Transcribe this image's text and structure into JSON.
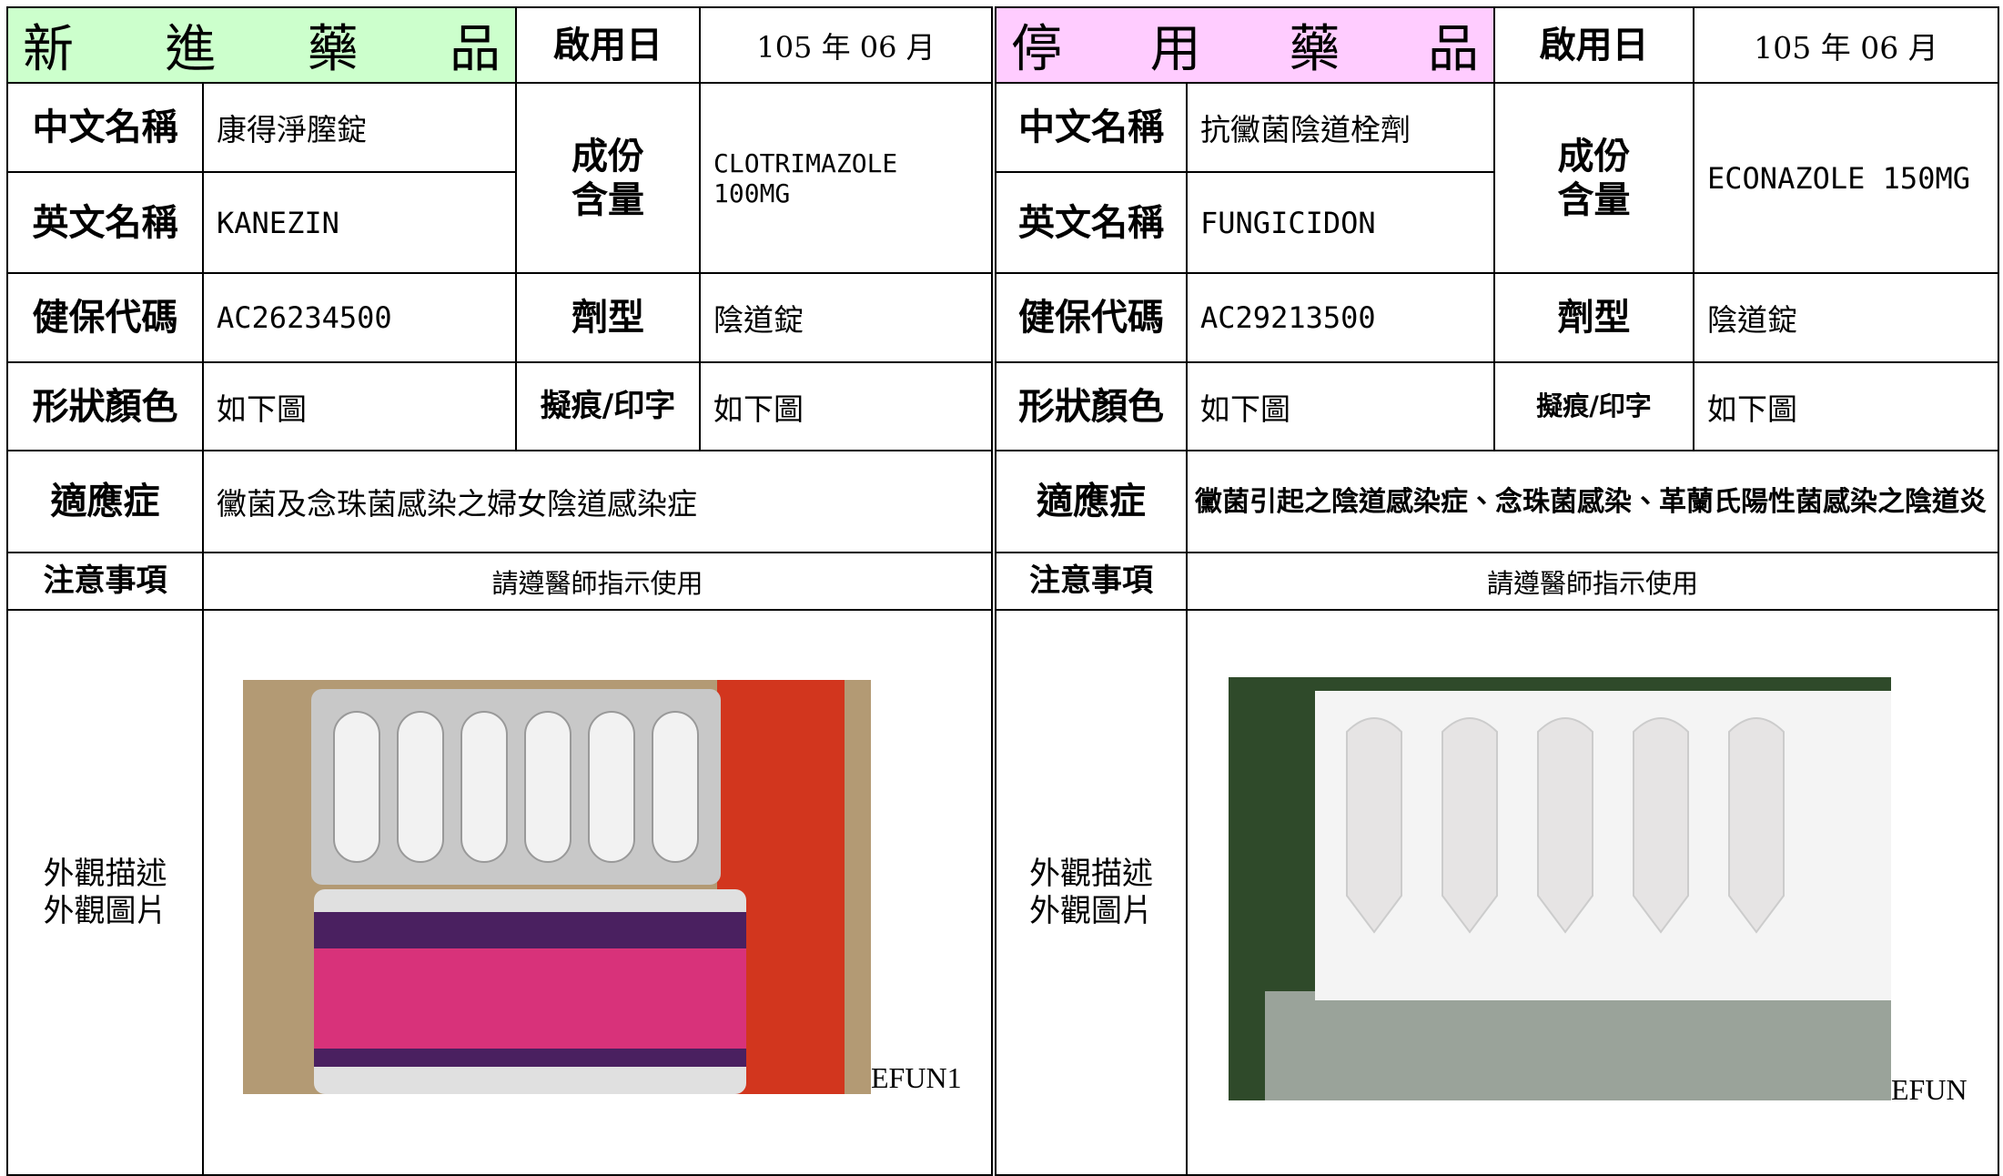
{
  "panels": [
    {
      "title": "新 進 藥 品",
      "start_label": "啟用日",
      "start_date": "105 年 06 月",
      "chinese_name_label": "中文名稱",
      "chinese_name": "康得淨膣錠",
      "english_name_label": "英文名稱",
      "english_name": "KANEZIN",
      "ingredient_label": "成份\n含量",
      "ingredient": "CLOTRIMAZOLE 100MG",
      "nhi_code_label": "健保代碼",
      "nhi_code": "AC26234500",
      "dosage_form_label": "劑型",
      "dosage_form": "陰道錠",
      "shape_color_label": "形狀顏色",
      "shape_color": "如下圖",
      "marking_label": "擬痕/印字",
      "marking": "如下圖",
      "indication_label": "適應症",
      "indication": "黴菌及念珠菌感染之婦女陰道感染症",
      "precautions_label": "注意事項",
      "precautions": "請遵醫師指示使用",
      "appearance_label": "外觀描述\n外觀圖片",
      "photo_caption": "EFUN1"
    },
    {
      "title": "停 用 藥 品",
      "start_label": "啟用日",
      "start_date": "105 年 06 月",
      "chinese_name_label": "中文名稱",
      "chinese_name": "抗黴菌陰道栓劑",
      "english_name_label": "英文名稱",
      "english_name": "FUNGICIDON",
      "ingredient_label": "成份\n含量",
      "ingredient": "ECONAZOLE 150MG",
      "nhi_code_label": "健保代碼",
      "nhi_code": "AC29213500",
      "dosage_form_label": "劑型",
      "dosage_form": "陰道錠",
      "shape_color_label": "形狀顏色",
      "shape_color": "如下圖",
      "marking_label": "擬痕/印字",
      "marking": "如下圖",
      "indication_label": "適應症",
      "indication": "黴菌引起之陰道感染症、念珠菌感染、革蘭氏陽性菌感染之陰道炎",
      "precautions_label": "注意事項",
      "precautions": "請遵醫師指示使用",
      "appearance_label": "外觀描述\n外觀圖片",
      "photo_caption": "EFUN"
    }
  ]
}
